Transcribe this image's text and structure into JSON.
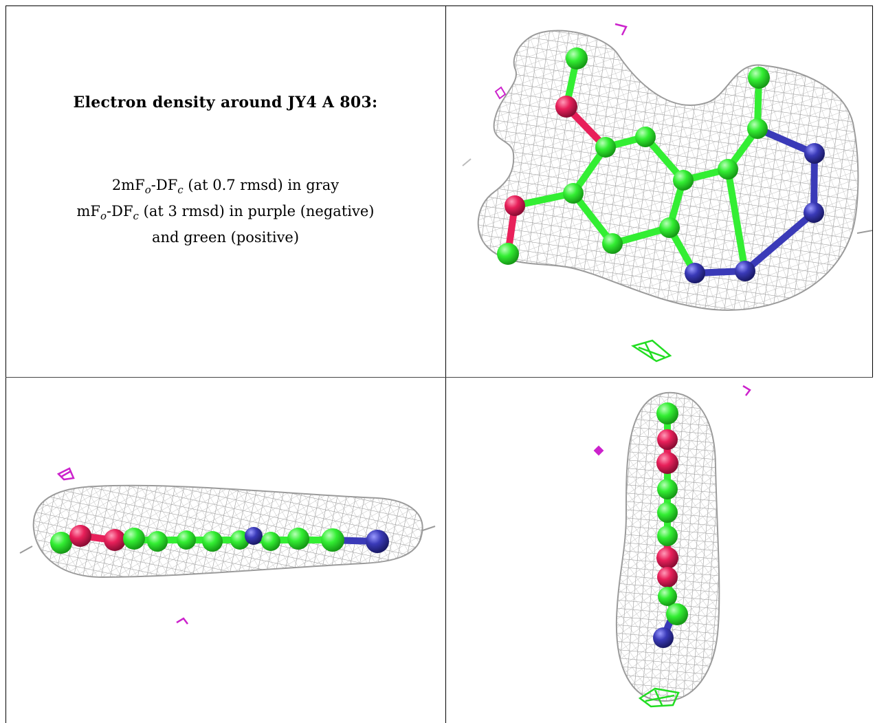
{
  "caption": {
    "title": "Electron density around JY4 A 803:",
    "line1_pre": "2mF",
    "line1_sub1": "o",
    "line1_mid": "-DF",
    "line1_sub2": "c",
    "line1_post": " (at 0.7 rmsd) in gray",
    "line2_pre": "mF",
    "line2_sub1": "o",
    "line2_mid": "-DF",
    "line2_sub2": "c",
    "line2_post": " (at 3 rmsd) in purple (negative)",
    "line3": "and green (positive)"
  },
  "colors": {
    "mesh_gray": "#9a9a9a",
    "carbon_green": "#33ee33",
    "oxygen_red": "#e8205a",
    "nitrogen_blue": "#3a3ab8",
    "negative_purple": "#cc22cc",
    "positive_green": "#22dd22"
  },
  "panels": [
    {
      "view": "top-right",
      "content": "ligand front view with density mesh"
    },
    {
      "view": "bottom-left",
      "content": "ligand side view with density mesh"
    },
    {
      "view": "bottom-right",
      "content": "ligand edge view with density mesh"
    }
  ]
}
